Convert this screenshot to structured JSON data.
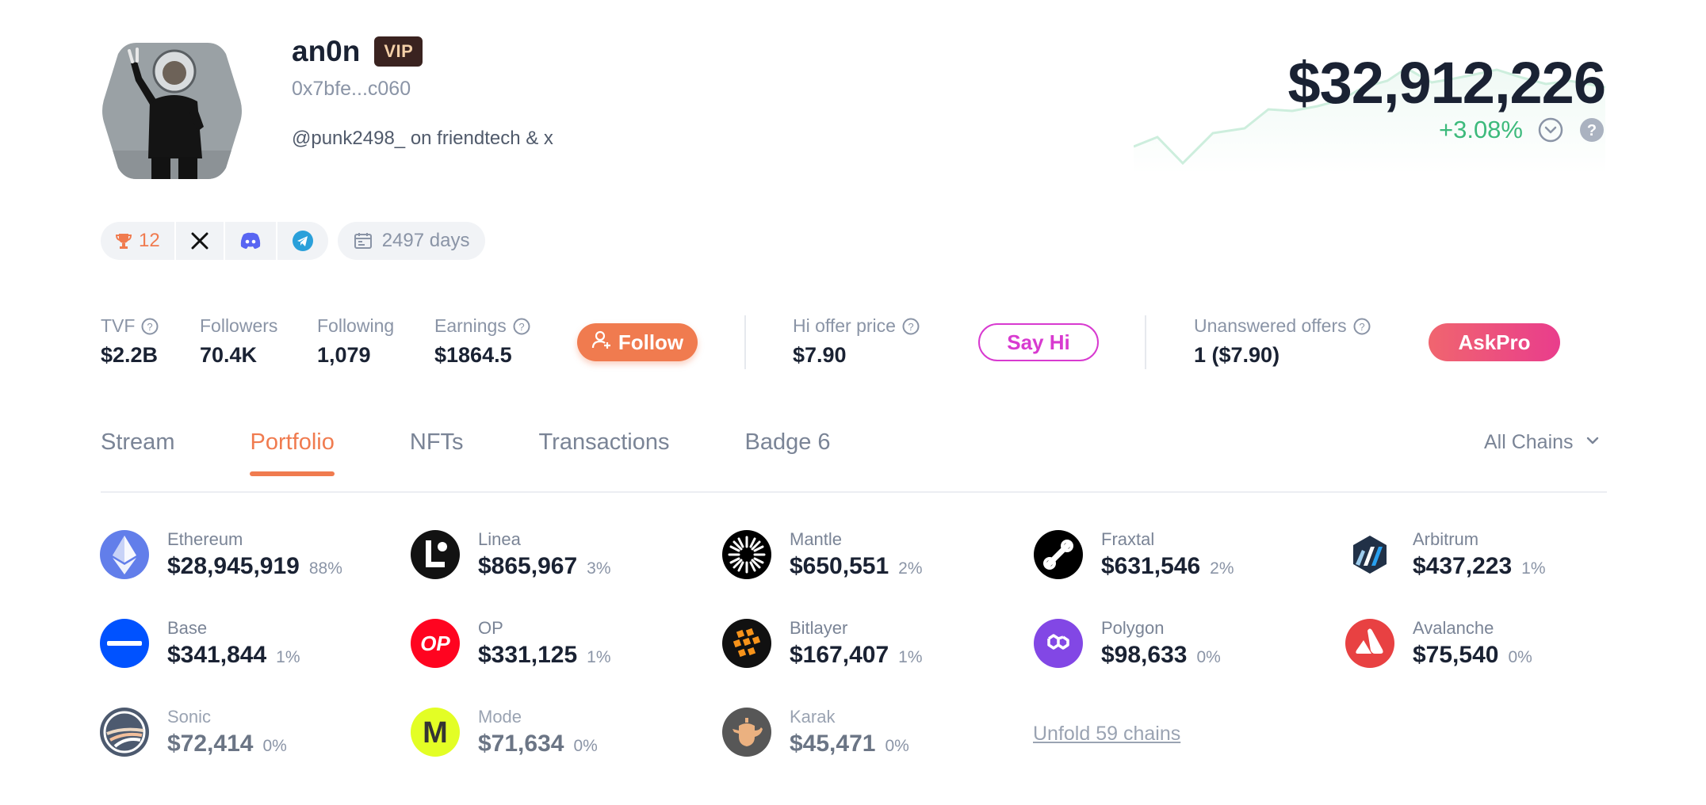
{
  "profile": {
    "name": "an0n",
    "vip_label": "VIP",
    "address": "0x7bfe...c060",
    "bio": "@punk2498_ on friendtech & x",
    "total_value": "$32,912,226",
    "change": "+3.08%"
  },
  "badges": {
    "trophy_count": "12",
    "days": "2497 days"
  },
  "stats": {
    "tvf_label": "TVF",
    "tvf_value": "$2.2B",
    "followers_label": "Followers",
    "followers_value": "70.4K",
    "following_label": "Following",
    "following_value": "1,079",
    "earnings_label": "Earnings",
    "earnings_value": "$1864.5",
    "follow_button": "Follow",
    "hi_offer_label": "Hi offer price",
    "hi_offer_value": "$7.90",
    "say_hi_button": "Say Hi",
    "unanswered_label": "Unanswered offers",
    "unanswered_value": "1 ($7.90)",
    "askpro_button": "AskPro"
  },
  "tabs": [
    {
      "label": "Stream",
      "active": false
    },
    {
      "label": "Portfolio",
      "active": true
    },
    {
      "label": "NFTs",
      "active": false
    },
    {
      "label": "Transactions",
      "active": false
    },
    {
      "label": "Badge 6",
      "active": false
    }
  ],
  "chains_filter": "All Chains",
  "chains": [
    {
      "name": "Ethereum",
      "value": "$28,945,919",
      "pct": "88%",
      "icon": "ethereum-icon",
      "color": "#627eea"
    },
    {
      "name": "Linea",
      "value": "$865,967",
      "pct": "3%",
      "icon": "linea-icon",
      "color": "#121212"
    },
    {
      "name": "Mantle",
      "value": "$650,551",
      "pct": "2%",
      "icon": "mantle-icon",
      "color": "#000000"
    },
    {
      "name": "Fraxtal",
      "value": "$631,546",
      "pct": "2%",
      "icon": "fraxtal-icon",
      "color": "#000000"
    },
    {
      "name": "Arbitrum",
      "value": "$437,223",
      "pct": "1%",
      "icon": "arbitrum-icon",
      "color": "#213147"
    },
    {
      "name": "Base",
      "value": "$341,844",
      "pct": "1%",
      "icon": "base-icon",
      "color": "#0052ff"
    },
    {
      "name": "OP",
      "value": "$331,125",
      "pct": "1%",
      "icon": "optimism-icon",
      "color": "#ff0420"
    },
    {
      "name": "Bitlayer",
      "value": "$167,407",
      "pct": "1%",
      "icon": "bitlayer-icon",
      "color": "#111111"
    },
    {
      "name": "Polygon",
      "value": "$98,633",
      "pct": "0%",
      "icon": "polygon-icon",
      "color": "#8247e5"
    },
    {
      "name": "Avalanche",
      "value": "$75,540",
      "pct": "0%",
      "icon": "avalanche-icon",
      "color": "#e84142"
    },
    {
      "name": "Sonic",
      "value": "$72,414",
      "pct": "0%",
      "icon": "sonic-icon",
      "color": "#2f3e57"
    },
    {
      "name": "Mode",
      "value": "$71,634",
      "pct": "0%",
      "icon": "mode-icon",
      "color": "#dffe00"
    },
    {
      "name": "Karak",
      "value": "$45,471",
      "pct": "0%",
      "icon": "karak-icon",
      "color": "#3a3a3a"
    }
  ],
  "unfold_label": "Unfold 59 chains",
  "colors": {
    "accent": "#f07b4f",
    "positive": "#3dba7c",
    "say_hi": "#d83ad0",
    "askpro_start": "#f0656f",
    "askpro_end": "#e93d8c"
  }
}
